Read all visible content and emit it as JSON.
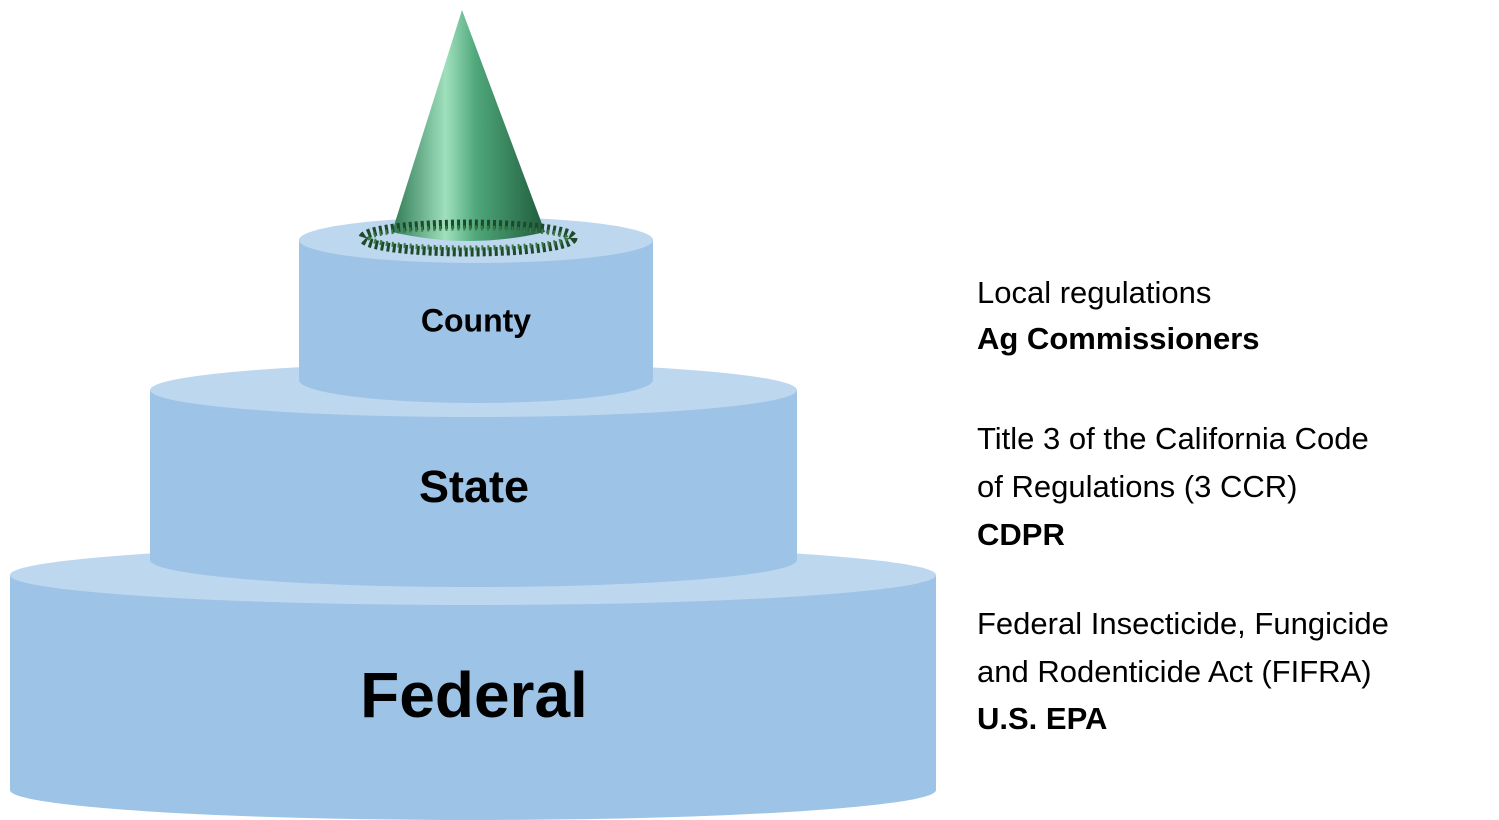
{
  "tiers": [
    {
      "label": "County"
    },
    {
      "label": "State"
    },
    {
      "label": "Federal"
    }
  ],
  "descriptions": [
    {
      "lines": [
        "Local regulations"
      ],
      "agency": "Ag Commissioners"
    },
    {
      "lines": [
        "Title 3 of the California Code",
        "of Regulations (3 CCR)"
      ],
      "agency": "CDPR"
    },
    {
      "lines": [
        "Federal Insecticide, Fungicide",
        "and Rodenticide Act (FIFRA)"
      ],
      "agency": "U.S. EPA"
    }
  ]
}
